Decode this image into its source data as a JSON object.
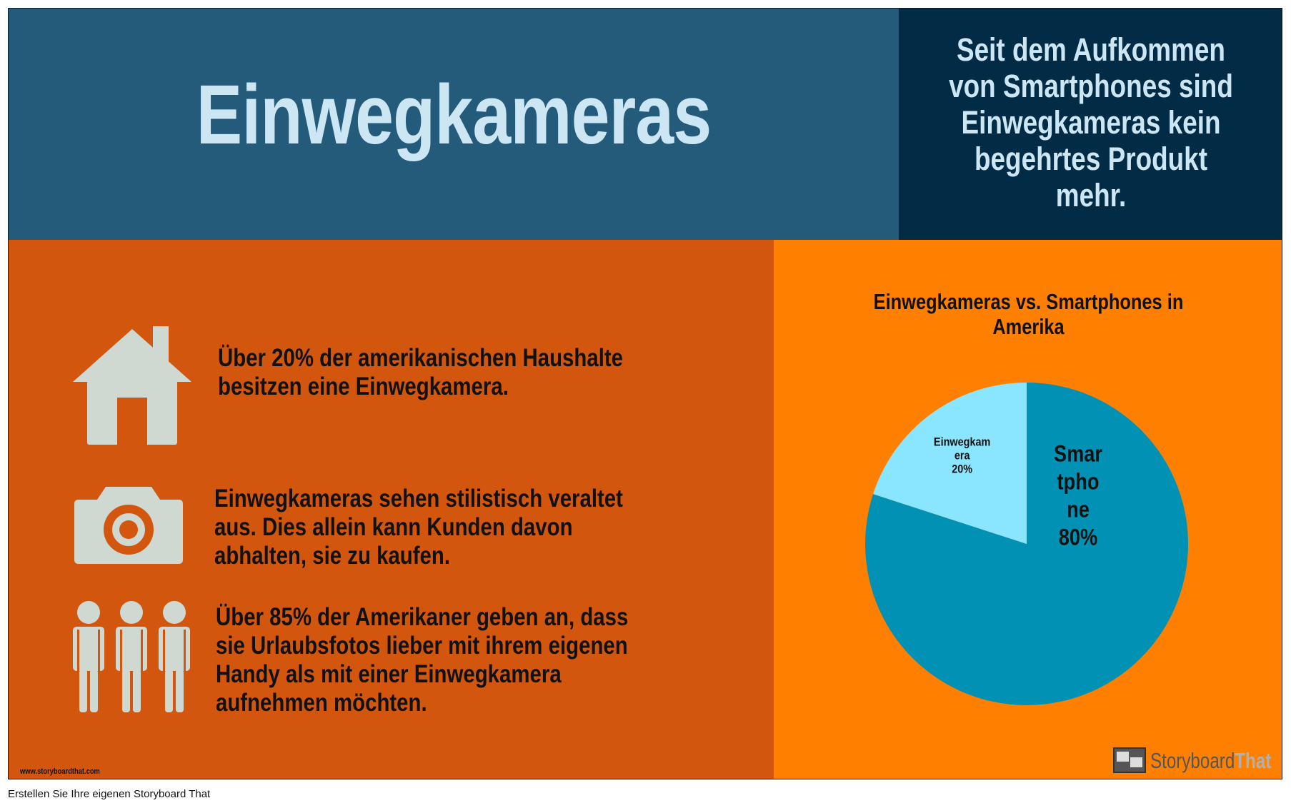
{
  "header": {
    "title": "Einwegkameras",
    "subtitle": "Seit dem Aufkommen von Smartphones sind Einwegkameras kein begehrtes Produkt mehr.",
    "subtitle_lines": [
      "Seit dem Aufkommen",
      "von Smartphones sind",
      "Einwegkameras kein",
      "begehrtes Produkt",
      "mehr."
    ]
  },
  "facts": [
    {
      "icon": "house-icon",
      "lines": [
        "Über 20% der amerikanischen Haushalte",
        "besitzen eine Einwegkamera."
      ]
    },
    {
      "icon": "camera-icon",
      "lines": [
        "Einwegkameras sehen stilistisch veraltet",
        "aus. Dies allein kann Kunden davon",
        "abhalten, sie zu kaufen."
      ]
    },
    {
      "icon": "people-icon",
      "lines": [
        "Über 85% der Amerikaner geben an, dass",
        "sie Urlaubsfotos lieber mit ihrem eigenen",
        "Handy als mit einer Einwegkamera",
        "aufnehmen möchten."
      ]
    }
  ],
  "footer_url": "www.storyboardthat.com",
  "logo": {
    "word1": "Storyboard",
    "word2": "That"
  },
  "bottom_caption": "Erstellen Sie Ihre eigenen Storyboard That",
  "colors": {
    "header_blue": "#245b7a",
    "header_navy": "#022b46",
    "title_text": "#cde6f3",
    "left_panel": "#d2560e",
    "right_panel": "#ff8000",
    "icon_fill": "#cfd9d1",
    "smartphone_slice": "#0091b4",
    "einwegkamera_slice": "#8ae6ff"
  },
  "chart_data": {
    "type": "pie",
    "title": "Einwegkameras vs. Smartphones in Amerika",
    "title_lines": [
      "Einwegkameras vs. Smartphones in",
      "Amerika"
    ],
    "slices": [
      {
        "label": "Smartphone",
        "value": 80,
        "display_lines": [
          "Smar",
          "tpho",
          "ne",
          "80%"
        ],
        "color": "#0091b4"
      },
      {
        "label": "Einwegkamera",
        "value": 20,
        "display_lines": [
          "Einwegkam",
          "era",
          "20%"
        ],
        "color": "#8ae6ff"
      }
    ]
  }
}
